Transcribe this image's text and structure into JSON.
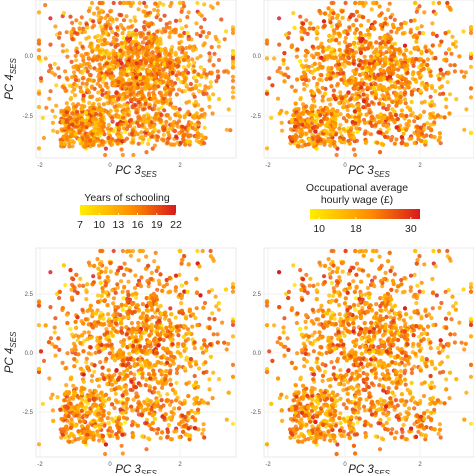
{
  "colors": {
    "gradient_low": "#ffee00",
    "gradient_mid": "#ff8c00",
    "gradient_high": "#d7191c",
    "panel_bg": "#ffffff",
    "grid": "#ececec",
    "panel_border": "#dcdcdc"
  },
  "legends": [
    {
      "title_lines": [
        "Years of schooling"
      ],
      "ticks": [
        "7",
        "10",
        "13",
        "16",
        "19",
        "22"
      ],
      "range": [
        7,
        22
      ]
    },
    {
      "title_lines": [
        "Occupational average",
        "hourly wage (£)"
      ],
      "ticks": [
        "10",
        "18",
        "30"
      ],
      "range": [
        8,
        32
      ]
    }
  ],
  "chart_data": [
    {
      "type": "scatter",
      "panel": "top-left",
      "xlabel": "PC 3",
      "xlabel_sub": "SES",
      "ylabel": "PC 4",
      "ylabel_sub": "SES",
      "x_ticks": [
        "-2",
        "0",
        "2"
      ],
      "y_ticks": [
        "0.0",
        "-2.5"
      ],
      "color_variable": "Years of schooling",
      "color_range": [
        7,
        22
      ],
      "grid": true
    },
    {
      "type": "scatter",
      "panel": "top-right",
      "xlabel": "PC 3",
      "xlabel_sub": "SES",
      "ylabel": "",
      "x_ticks": [
        "-2",
        "0",
        "2"
      ],
      "y_ticks": [
        "0.0",
        "-2.5"
      ],
      "color_variable": "Occupational average hourly wage (£)",
      "color_range": [
        8,
        32
      ],
      "grid": true
    },
    {
      "type": "scatter",
      "panel": "bottom-left",
      "xlabel": "PC 3",
      "xlabel_sub": "SES",
      "ylabel": "PC 4",
      "ylabel_sub": "SES",
      "x_ticks": [
        "-2",
        "0",
        "2"
      ],
      "y_ticks": [
        "2.5",
        "0.0",
        "-2.5"
      ],
      "color_variable": "Years of schooling",
      "color_range": [
        7,
        22
      ],
      "grid": true
    },
    {
      "type": "scatter",
      "panel": "bottom-right",
      "xlabel": "PC 3",
      "xlabel_sub": "SES",
      "ylabel": "",
      "x_ticks": [
        "-2",
        "0",
        "2"
      ],
      "y_ticks": [
        "2.5",
        "0.0",
        "-2.5"
      ],
      "color_variable": "Occupational average hourly wage (£)",
      "color_range": [
        8,
        32
      ],
      "grid": true
    }
  ]
}
